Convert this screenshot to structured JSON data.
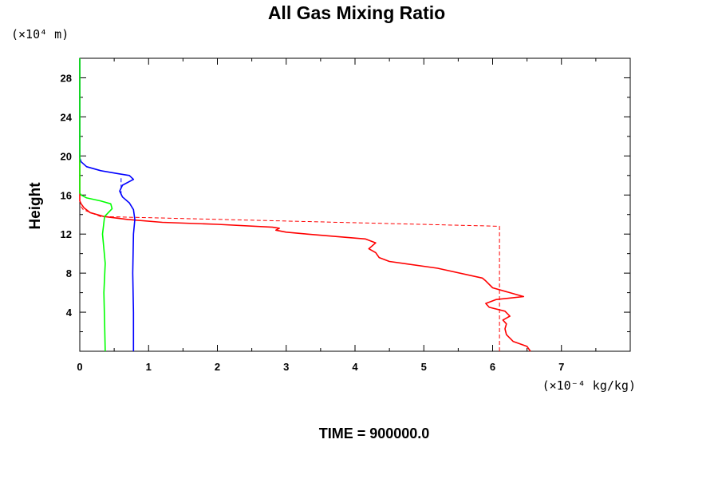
{
  "chart_data": {
    "type": "line",
    "title": "All Gas Mixing Ratio",
    "ylabel": "Height",
    "xlabel": "",
    "y_unit": "(×10⁴ m)",
    "x_unit": "(×10⁻⁴ kg/kg)",
    "footer": "TIME = 900000.0",
    "xlim": [
      0,
      8
    ],
    "ylim": [
      0,
      30
    ],
    "x_ticks": [
      "0",
      "1",
      "2",
      "3",
      "4",
      "5",
      "6",
      "7"
    ],
    "y_ticks": [
      "4",
      "8",
      "12",
      "16",
      "20",
      "24",
      "28"
    ],
    "grid": false,
    "legend": "none",
    "series": [
      {
        "color": "#ff0000",
        "style": "solid",
        "x": [
          6.55,
          6.5,
          6.3,
          6.2,
          6.18,
          6.2,
          6.15,
          6.25,
          6.18,
          5.95,
          5.9,
          6.05,
          6.45,
          6.0,
          5.9,
          5.85,
          5.2,
          4.5,
          4.35,
          4.3,
          4.2,
          4.3,
          4.15,
          3.3,
          3.0,
          2.85,
          2.9,
          2.8,
          2.0,
          1.2,
          0.7,
          0.35,
          0.15,
          0.06,
          0.02,
          0.0,
          0.0
        ],
        "y": [
          0.0,
          0.5,
          1.0,
          1.7,
          2.3,
          2.8,
          3.2,
          3.6,
          4.1,
          4.5,
          4.9,
          5.3,
          5.6,
          6.5,
          7.2,
          7.5,
          8.5,
          9.2,
          9.6,
          10.1,
          10.5,
          11.1,
          11.5,
          12.0,
          12.2,
          12.4,
          12.6,
          12.7,
          13.0,
          13.2,
          13.5,
          13.8,
          14.2,
          14.7,
          15.1,
          15.4,
          30.0
        ]
      },
      {
        "color": "#ff0000",
        "style": "dashed",
        "x": [
          6.1,
          6.1,
          0.3,
          0.05,
          0.0
        ],
        "y": [
          0.0,
          12.8,
          13.8,
          14.5,
          15.0
        ]
      },
      {
        "color": "#0000ff",
        "style": "solid",
        "x": [
          0.78,
          0.78,
          0.77,
          0.78,
          0.8,
          0.78,
          0.72,
          0.62,
          0.58,
          0.62,
          0.78,
          0.72,
          0.55,
          0.3,
          0.1,
          0.02,
          0.0,
          0.0
        ],
        "y": [
          0.0,
          4.0,
          8.0,
          12.0,
          13.5,
          14.5,
          15.2,
          15.8,
          16.4,
          17.0,
          17.6,
          18.0,
          18.2,
          18.5,
          18.9,
          19.4,
          19.8,
          30.0
        ]
      },
      {
        "color": "#0000ff",
        "style": "dashed",
        "x": [
          0.6,
          0.6
        ],
        "y": [
          16.0,
          17.8
        ]
      },
      {
        "color": "#00ff00",
        "style": "solid",
        "x": [
          0.37,
          0.36,
          0.35,
          0.37,
          0.33,
          0.36,
          0.47,
          0.45,
          0.3,
          0.1,
          0.02,
          0.0,
          0.0
        ],
        "y": [
          0.0,
          3.0,
          6.0,
          9.0,
          12.0,
          13.8,
          14.6,
          15.1,
          15.4,
          15.7,
          16.0,
          16.2,
          30.0
        ]
      }
    ]
  }
}
